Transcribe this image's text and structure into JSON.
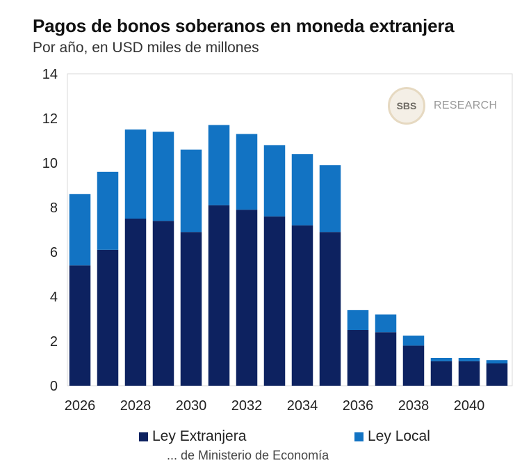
{
  "chart_data": {
    "type": "bar",
    "stacked": true,
    "title": "Pagos de bonos soberanos en moneda extranjera",
    "subtitle": "Por año, en USD miles de millones",
    "categories": [
      "2026",
      "2027",
      "2028",
      "2029",
      "2030",
      "2031",
      "2032",
      "2033",
      "2034",
      "2035",
      "2036",
      "2037",
      "2038",
      "2039",
      "2040",
      "2041"
    ],
    "x_tick_labels": [
      "2026",
      "2028",
      "2030",
      "2032",
      "2034",
      "2036",
      "2038",
      "2040"
    ],
    "y_tick_labels": [
      "0",
      "2",
      "4",
      "6",
      "8",
      "10",
      "12",
      "14"
    ],
    "ylim": [
      0,
      14
    ],
    "series": [
      {
        "name": "Ley Extranjera",
        "color": "#0d2260",
        "values": [
          5.4,
          6.1,
          7.5,
          7.4,
          6.9,
          8.1,
          7.9,
          7.6,
          7.2,
          6.9,
          2.5,
          2.4,
          1.8,
          1.1,
          1.1,
          1.0
        ]
      },
      {
        "name": "Ley Local",
        "color": "#1273c3",
        "values": [
          3.2,
          3.5,
          4.0,
          4.0,
          3.7,
          3.6,
          3.4,
          3.2,
          3.2,
          3.0,
          0.9,
          0.8,
          0.45,
          0.15,
          0.15,
          0.15
        ]
      }
    ],
    "legend_position": "bottom"
  },
  "logo": {
    "mark": "SBS",
    "text": "RESEARCH"
  },
  "source": "... de Ministerio de Economía"
}
